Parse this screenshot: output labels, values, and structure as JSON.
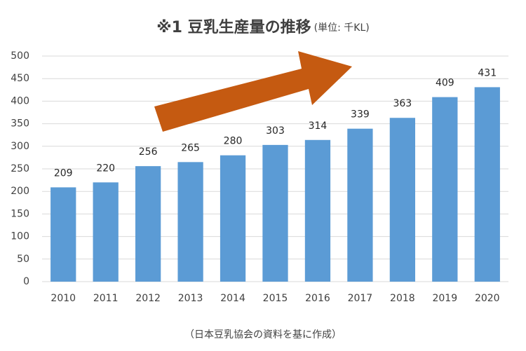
{
  "chart_data": {
    "type": "bar",
    "title": "※1 豆乳生産量の推移",
    "unit": "(単位: 千KL)",
    "note": "（日本豆乳協会の資料を基に作成）",
    "categories": [
      "2010",
      "2011",
      "2012",
      "2013",
      "2014",
      "2015",
      "2016",
      "2017",
      "2018",
      "2019",
      "2020"
    ],
    "values": [
      209,
      220,
      256,
      265,
      280,
      303,
      314,
      339,
      363,
      409,
      431
    ],
    "color": "#5b9bd5",
    "ylim": [
      0,
      500
    ],
    "yticks": [
      0,
      50,
      100,
      150,
      200,
      250,
      300,
      350,
      400,
      450,
      500
    ],
    "grid": true
  }
}
